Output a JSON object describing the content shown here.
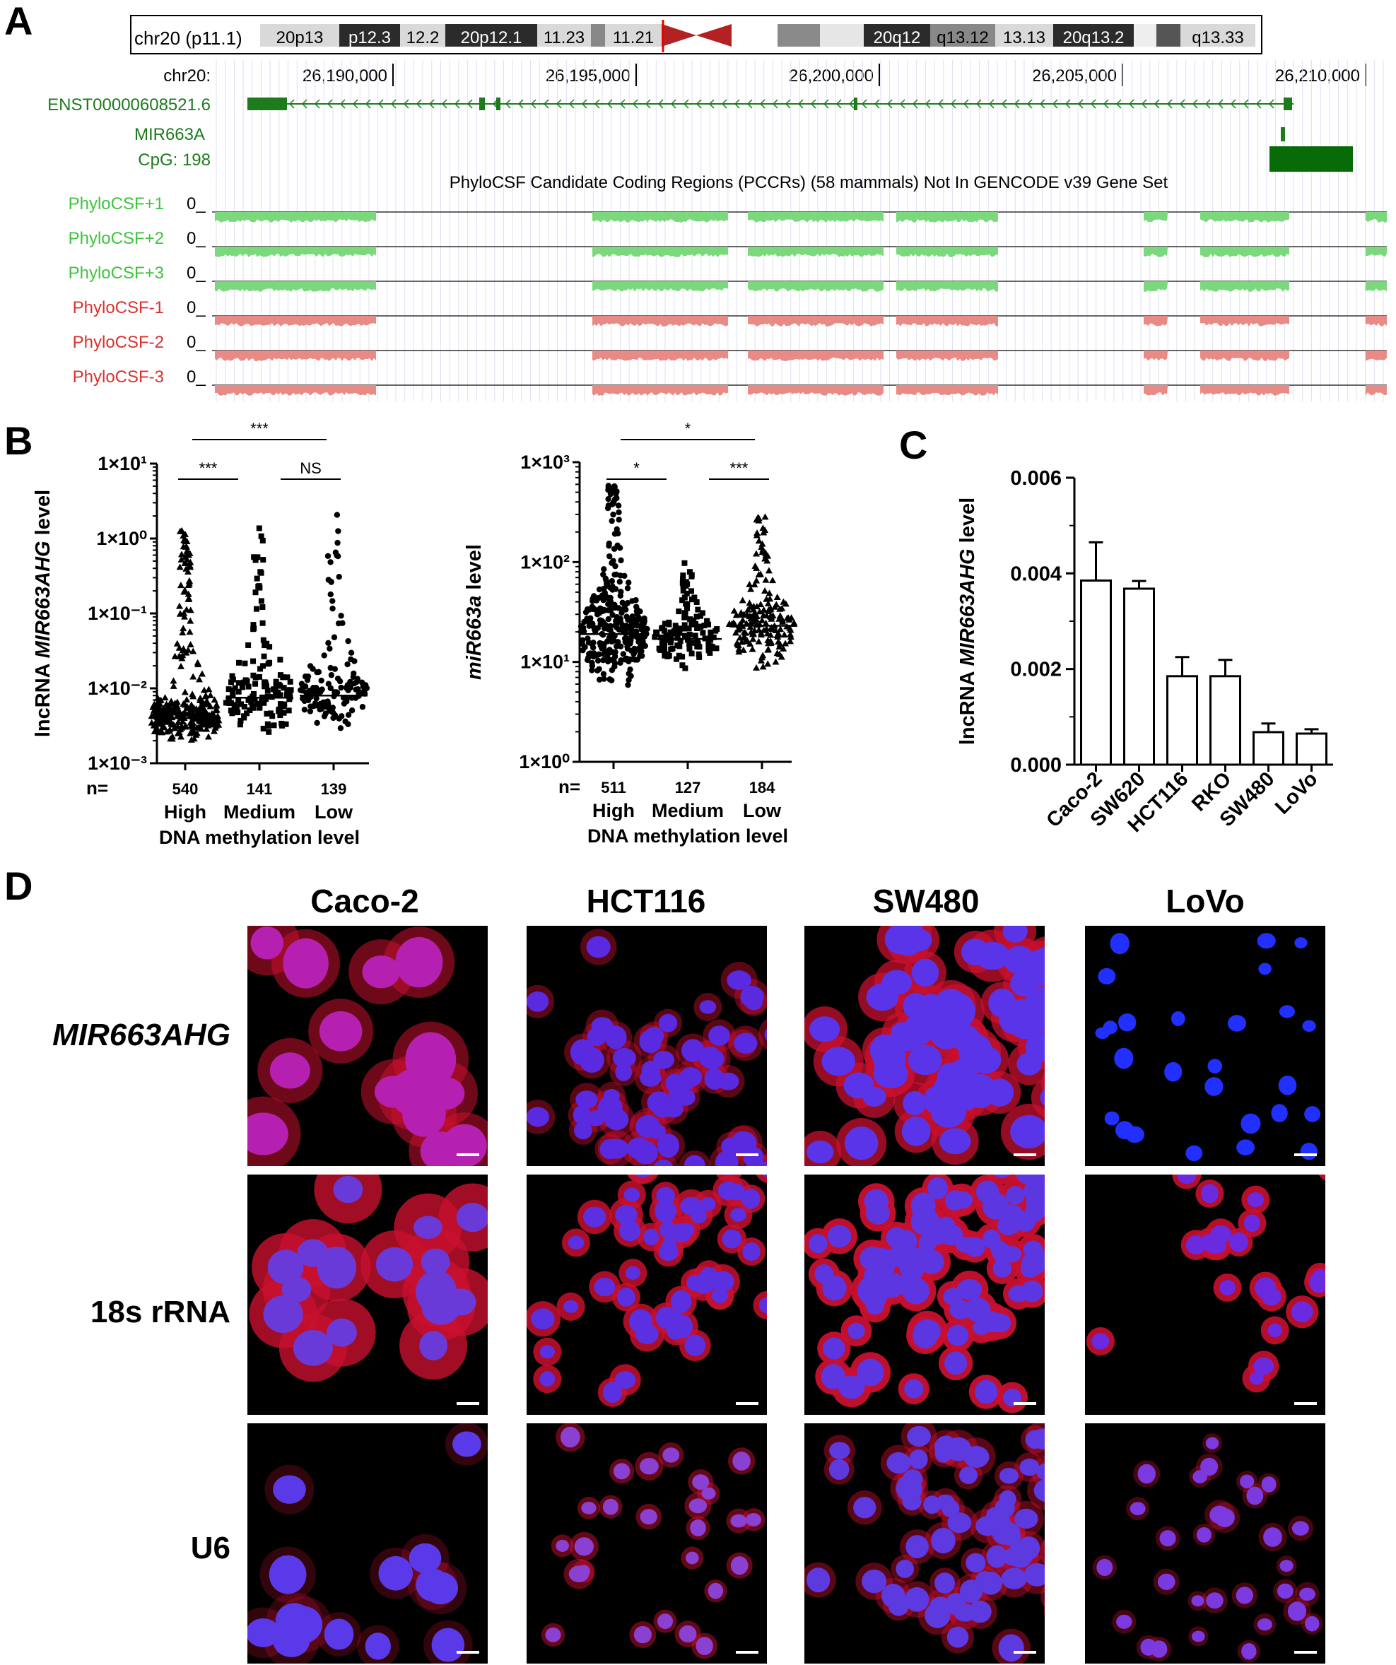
{
  "panels": {
    "a": {
      "label": "A",
      "ideogram": {
        "chrom_label": "chr20 (p11.1)",
        "bands": [
          "20p13",
          "p12.3",
          "12.2",
          "20p12.1",
          "11.23",
          "11.21",
          "20q12",
          "q13.12",
          "13.13",
          "20q13.2",
          "q13.33"
        ]
      },
      "ruler": {
        "label": "chr20:",
        "ticks": [
          "26,190,000",
          "26,195,000",
          "26,200,000",
          "26,205,000",
          "26,210,000"
        ]
      },
      "tracks": {
        "transcript": "ENST00000608521.6",
        "mirna": "MIR663A",
        "cpg": "CpG: 198",
        "pccr_title": "PhyloCSF Candidate Coding Regions (PCCRs)  (58 mammals) Not In GENCODE v39 Gene Set",
        "phylocsf": [
          {
            "name": "PhyloCSF+1",
            "zero": "0_",
            "color": "#3ec43e"
          },
          {
            "name": "PhyloCSF+2",
            "zero": "0_",
            "color": "#3ec43e"
          },
          {
            "name": "PhyloCSF+3",
            "zero": "0_",
            "color": "#3ec43e"
          },
          {
            "name": "PhyloCSF-1",
            "zero": "0_",
            "color": "#d9312e"
          },
          {
            "name": "PhyloCSF-2",
            "zero": "0_",
            "color": "#d9312e"
          },
          {
            "name": "PhyloCSF-3",
            "zero": "0_",
            "color": "#d9312e"
          }
        ]
      }
    },
    "b": {
      "label": "B"
    },
    "c": {
      "label": "C"
    },
    "d": {
      "label": "D",
      "columns": [
        "Caco-2",
        "HCT116",
        "SW480",
        "LoVo"
      ],
      "rows": [
        "MIR663AHG",
        "18s rRNA",
        "U6"
      ]
    }
  },
  "chart_data": [
    {
      "type": "scatter",
      "panel": "B-left",
      "ylabel_prefix": "lncRNA ",
      "ylabel_italic": "MIR663AHG",
      "ylabel_suffix": " level",
      "ylabel": "lncRNA MIR663AHG level",
      "xlabel": "DNA methylation level",
      "y_scale": "log",
      "ylim": [
        0.001,
        10
      ],
      "y_ticks": [
        "1×10⁻³",
        "1×10⁻²",
        "1×10⁻¹",
        "1×10⁰",
        "1×10¹"
      ],
      "n_prefix": "n=",
      "categories": [
        "High",
        "Medium",
        "Low"
      ],
      "n": [
        "540",
        "141",
        "139"
      ],
      "markers": [
        "triangle",
        "square",
        "circle"
      ],
      "medians": [
        0.004,
        0.0075,
        0.008
      ],
      "ranges": [
        [
          0.0013,
          1.3
        ],
        [
          0.0015,
          1.4
        ],
        [
          0.0019,
          3.0
        ]
      ],
      "significance": [
        {
          "from": "High",
          "to": "Medium",
          "label": "***"
        },
        {
          "from": "Medium",
          "to": "Low",
          "label": "NS"
        },
        {
          "from": "High",
          "to": "Low",
          "label": "***"
        }
      ]
    },
    {
      "type": "scatter",
      "panel": "B-right",
      "ylabel_italic": "miR663a",
      "ylabel_suffix": " level",
      "ylabel": "miR663a level",
      "xlabel": "DNA methylation level",
      "y_scale": "log",
      "ylim": [
        1,
        1000
      ],
      "y_ticks": [
        "1×10⁰",
        "1×10¹",
        "1×10²",
        "1×10³"
      ],
      "n_prefix": "n=",
      "categories": [
        "High",
        "Medium",
        "Low"
      ],
      "n": [
        "511",
        "127",
        "184"
      ],
      "markers": [
        "circle",
        "square",
        "triangle"
      ],
      "medians": [
        19,
        17,
        23
      ],
      "ranges": [
        [
          3.5,
          600
        ],
        [
          6.5,
          100
        ],
        [
          5.5,
          290
        ]
      ],
      "significance": [
        {
          "from": "High",
          "to": "Medium",
          "label": "*"
        },
        {
          "from": "Medium",
          "to": "Low",
          "label": "***"
        },
        {
          "from": "High",
          "to": "Low",
          "label": "*"
        }
      ]
    },
    {
      "type": "bar",
      "panel": "C",
      "ylabel_prefix": "lncRNA ",
      "ylabel_italic": "MIR663AHG",
      "ylabel_suffix": " level",
      "ylabel": "lncRNA MIR663AHG level",
      "ylim": [
        0,
        0.006
      ],
      "y_ticks": [
        "0.000",
        "0.002",
        "0.004",
        "0.006"
      ],
      "categories": [
        "Caco-2",
        "SW620",
        "HCT116",
        "RKO",
        "SW480",
        "LoVo"
      ],
      "values": [
        0.00385,
        0.00368,
        0.00185,
        0.00185,
        0.00068,
        0.00065
      ],
      "errors": [
        0.0008,
        0.00016,
        0.0004,
        0.00034,
        0.00018,
        9e-05
      ]
    }
  ]
}
